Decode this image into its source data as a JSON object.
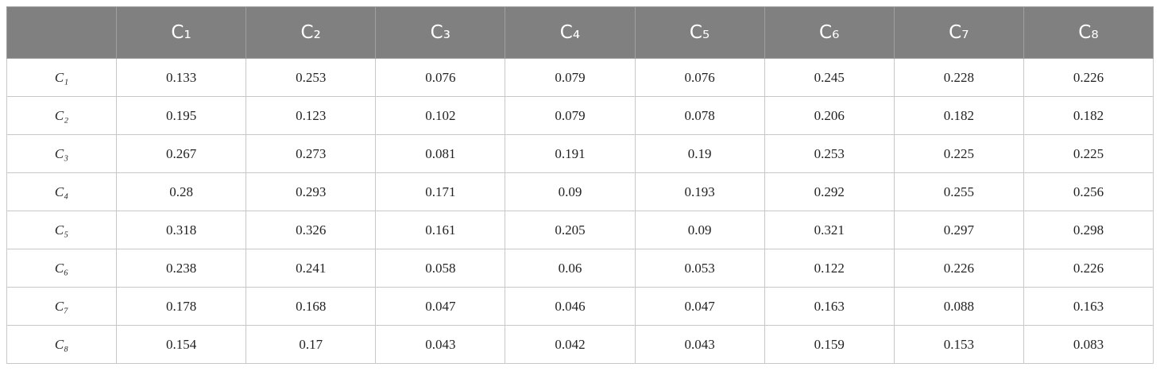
{
  "table": {
    "columns": [
      "C₁",
      "C₂",
      "C₃",
      "C₄",
      "C₅",
      "C₆",
      "C₇",
      "C₈"
    ],
    "rows": [
      {
        "label": "C₁",
        "values": [
          0.133,
          0.253,
          0.076,
          0.079,
          0.076,
          0.245,
          0.228,
          0.226
        ]
      },
      {
        "label": "C₂",
        "values": [
          0.195,
          0.123,
          0.102,
          0.079,
          0.078,
          0.206,
          0.182,
          0.182
        ]
      },
      {
        "label": "C₃",
        "values": [
          0.267,
          0.273,
          0.081,
          0.191,
          0.19,
          0.253,
          0.225,
          0.225
        ]
      },
      {
        "label": "C₄",
        "values": [
          0.28,
          0.293,
          0.171,
          0.09,
          0.193,
          0.292,
          0.255,
          0.256
        ]
      },
      {
        "label": "C₅",
        "values": [
          0.318,
          0.326,
          0.161,
          0.205,
          0.09,
          0.321,
          0.297,
          0.298
        ]
      },
      {
        "label": "C₆",
        "values": [
          0.238,
          0.241,
          0.058,
          0.06,
          0.053,
          0.122,
          0.226,
          0.226
        ]
      },
      {
        "label": "C₇",
        "values": [
          0.178,
          0.168,
          0.047,
          0.046,
          0.047,
          0.163,
          0.088,
          0.163
        ]
      },
      {
        "label": "C₈",
        "values": [
          0.154,
          0.17,
          0.043,
          0.042,
          0.043,
          0.159,
          0.153,
          0.083
        ]
      }
    ]
  }
}
